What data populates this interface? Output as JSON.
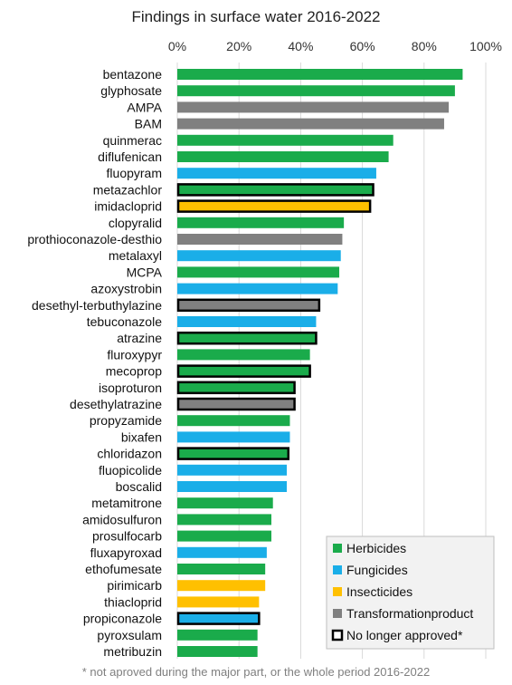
{
  "chart_data": {
    "type": "bar",
    "orientation": "horizontal",
    "title": "Findings in surface water 2016-2022",
    "xlim": [
      0,
      100
    ],
    "x_ticks": [
      "0%",
      "20%",
      "40%",
      "60%",
      "80%",
      "100%"
    ],
    "x_tick_values": [
      0,
      20,
      40,
      60,
      80,
      100
    ],
    "grid": "vertical",
    "legend_position": "bottom-right",
    "colors": {
      "Herbicides": "#1aab4b",
      "Fungicides": "#1aaee8",
      "Insecticides": "#ffc000",
      "Transformationproduct": "#808080",
      "outline": "#000000"
    },
    "legend": [
      {
        "label": "Herbicides",
        "key": "Herbicides"
      },
      {
        "label": "Fungicides",
        "key": "Fungicides"
      },
      {
        "label": "Insecticides",
        "key": "Insecticides"
      },
      {
        "label": "Transformationproduct",
        "key": "Transformationproduct"
      },
      {
        "label": "No longer approved*",
        "key": "outline"
      }
    ],
    "bars": [
      {
        "label": "bentazone",
        "value": 92.5,
        "group": "Herbicides",
        "no_longer_approved": false
      },
      {
        "label": "glyphosate",
        "value": 90,
        "group": "Herbicides",
        "no_longer_approved": false
      },
      {
        "label": "AMPA",
        "value": 88,
        "group": "Transformationproduct",
        "no_longer_approved": false
      },
      {
        "label": "BAM",
        "value": 86.5,
        "group": "Transformationproduct",
        "no_longer_approved": false
      },
      {
        "label": "quinmerac",
        "value": 70,
        "group": "Herbicides",
        "no_longer_approved": false
      },
      {
        "label": "diflufenican",
        "value": 68.5,
        "group": "Herbicides",
        "no_longer_approved": false
      },
      {
        "label": "fluopyram",
        "value": 64.5,
        "group": "Fungicides",
        "no_longer_approved": false
      },
      {
        "label": "metazachlor",
        "value": 63.5,
        "group": "Herbicides",
        "no_longer_approved": true
      },
      {
        "label": "imidacloprid",
        "value": 62.5,
        "group": "Insecticides",
        "no_longer_approved": true
      },
      {
        "label": "clopyralid",
        "value": 54,
        "group": "Herbicides",
        "no_longer_approved": false
      },
      {
        "label": "prothioconazole-desthio",
        "value": 53.5,
        "group": "Transformationproduct",
        "no_longer_approved": false
      },
      {
        "label": "metalaxyl",
        "value": 53,
        "group": "Fungicides",
        "no_longer_approved": false
      },
      {
        "label": "MCPA",
        "value": 52.5,
        "group": "Herbicides",
        "no_longer_approved": false
      },
      {
        "label": "azoxystrobin",
        "value": 52,
        "group": "Fungicides",
        "no_longer_approved": false
      },
      {
        "label": "desethyl-terbuthylazine",
        "value": 46,
        "group": "Transformationproduct",
        "no_longer_approved": true
      },
      {
        "label": "tebuconazole",
        "value": 45,
        "group": "Fungicides",
        "no_longer_approved": false
      },
      {
        "label": "atrazine",
        "value": 45,
        "group": "Herbicides",
        "no_longer_approved": true
      },
      {
        "label": "fluroxypyr",
        "value": 43,
        "group": "Herbicides",
        "no_longer_approved": false
      },
      {
        "label": "mecoprop",
        "value": 43,
        "group": "Herbicides",
        "no_longer_approved": true
      },
      {
        "label": "isoproturon",
        "value": 38,
        "group": "Herbicides",
        "no_longer_approved": true
      },
      {
        "label": "desethylatrazine",
        "value": 38,
        "group": "Transformationproduct",
        "no_longer_approved": true
      },
      {
        "label": "propyzamide",
        "value": 36.5,
        "group": "Herbicides",
        "no_longer_approved": false
      },
      {
        "label": "bixafen",
        "value": 36.5,
        "group": "Fungicides",
        "no_longer_approved": false
      },
      {
        "label": "chloridazon",
        "value": 36,
        "group": "Herbicides",
        "no_longer_approved": true
      },
      {
        "label": "fluopicolide",
        "value": 35.5,
        "group": "Fungicides",
        "no_longer_approved": false
      },
      {
        "label": "boscalid",
        "value": 35.5,
        "group": "Fungicides",
        "no_longer_approved": false
      },
      {
        "label": "metamitrone",
        "value": 31,
        "group": "Herbicides",
        "no_longer_approved": false
      },
      {
        "label": "amidosulfuron",
        "value": 30.5,
        "group": "Herbicides",
        "no_longer_approved": false
      },
      {
        "label": "prosulfocarb",
        "value": 30.5,
        "group": "Herbicides",
        "no_longer_approved": false
      },
      {
        "label": "fluxapyroxad",
        "value": 29,
        "group": "Fungicides",
        "no_longer_approved": false
      },
      {
        "label": "ethofumesate",
        "value": 28.5,
        "group": "Herbicides",
        "no_longer_approved": false
      },
      {
        "label": "pirimicarb",
        "value": 28.5,
        "group": "Insecticides",
        "no_longer_approved": false
      },
      {
        "label": "thiacloprid",
        "value": 26.5,
        "group": "Insecticides",
        "no_longer_approved": false
      },
      {
        "label": "propiconazole",
        "value": 26.5,
        "group": "Fungicides",
        "no_longer_approved": true
      },
      {
        "label": "pyroxsulam",
        "value": 26,
        "group": "Herbicides",
        "no_longer_approved": false
      },
      {
        "label": "metribuzin",
        "value": 26,
        "group": "Herbicides",
        "no_longer_approved": false
      }
    ],
    "footnote": "* not aproved during the major part, or the whole period 2016-2022"
  }
}
